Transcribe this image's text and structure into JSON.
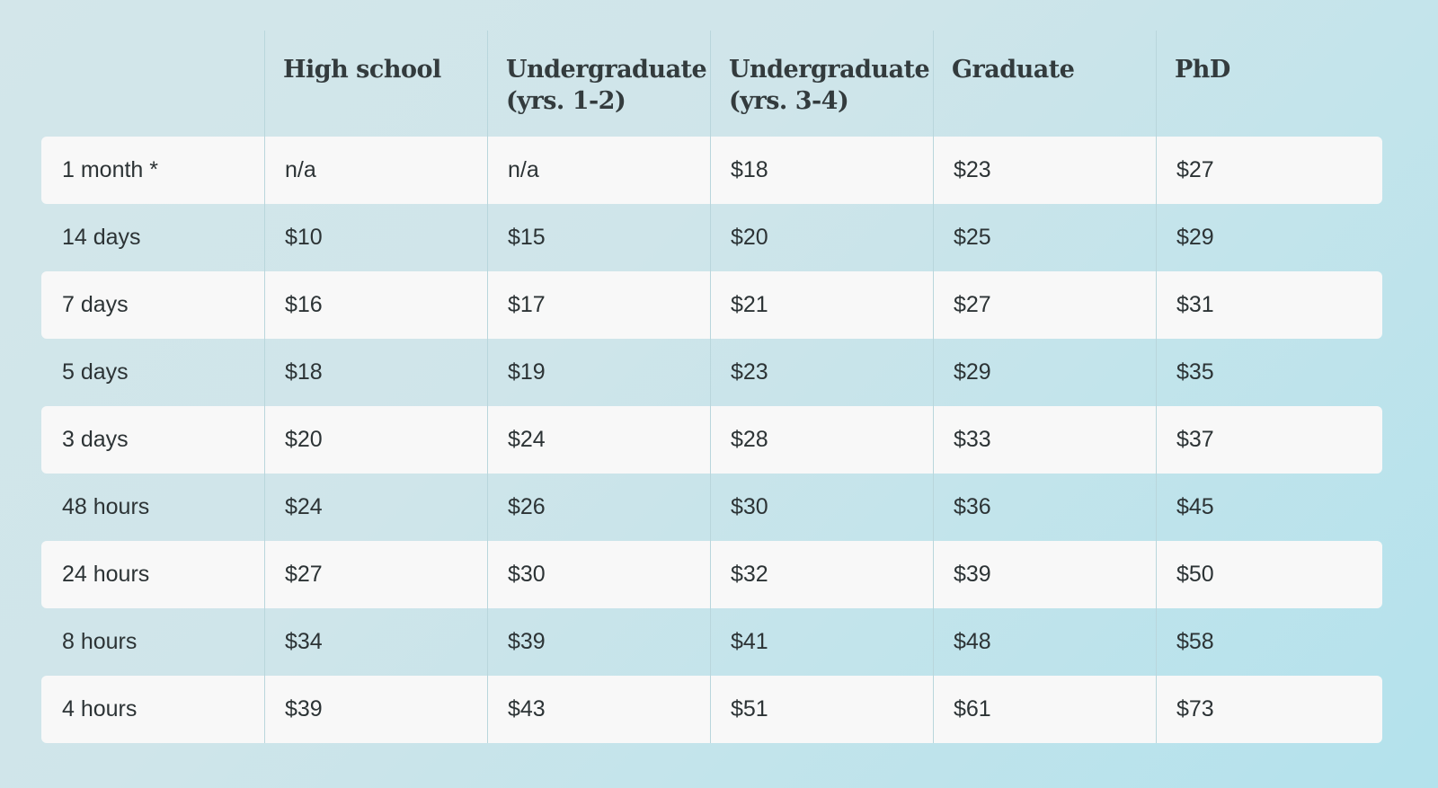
{
  "table": {
    "headers": [
      "",
      "High school",
      "Undergraduate (yrs. 1-2)",
      "Undergraduate (yrs. 3-4)",
      "Graduate",
      "PhD"
    ],
    "rows": [
      [
        "1 month *",
        "n/a",
        "n/a",
        "$18",
        "$23",
        "$27"
      ],
      [
        "14 days",
        "$10",
        "$15",
        "$20",
        "$25",
        "$29"
      ],
      [
        "7 days",
        "$16",
        "$17",
        "$21",
        "$27",
        "$31"
      ],
      [
        "5 days",
        "$18",
        "$19",
        "$23",
        "$29",
        "$35"
      ],
      [
        "3 days",
        "$20",
        "$24",
        "$28",
        "$33",
        "$37"
      ],
      [
        "48 hours",
        "$24",
        "$26",
        "$30",
        "$36",
        "$45"
      ],
      [
        "24 hours",
        "$27",
        "$30",
        "$32",
        "$39",
        "$50"
      ],
      [
        "8 hours",
        "$34",
        "$39",
        "$41",
        "$48",
        "$58"
      ],
      [
        "4 hours",
        "$39",
        "$43",
        "$51",
        "$61",
        "$73"
      ]
    ]
  },
  "colors": {
    "row_light": "#f8f8f8",
    "divider": "#b9d6dc",
    "text": "#2c3335",
    "header_text": "#333b3d"
  }
}
